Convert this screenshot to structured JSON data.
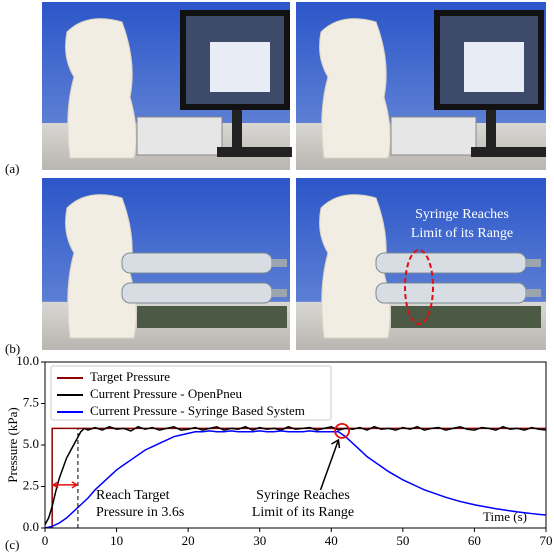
{
  "panel_labels": [
    "(a)",
    "(b)",
    "(c)"
  ],
  "photo_annotation": [
    "Syringe Reaches",
    "Limit of its Range"
  ],
  "chart_data": {
    "type": "line",
    "xlabel": "Time (s)",
    "ylabel": "Pressure (kPa)",
    "xlim": [
      0,
      70
    ],
    "ylim": [
      0,
      10
    ],
    "xticks": [
      0,
      10,
      20,
      30,
      40,
      50,
      60,
      70
    ],
    "yticks": [
      {
        "value": 0,
        "label": "0.0"
      },
      2.5,
      {
        "value": 5,
        "label": "5.0"
      },
      7.5,
      {
        "value": 10,
        "label": "10.0"
      }
    ],
    "legend": "upper left",
    "series": [
      {
        "name": "Target Pressure",
        "color": "#8b0000",
        "x": [
          0,
          1,
          1,
          70
        ],
        "values": [
          0,
          0,
          6,
          6
        ]
      },
      {
        "name": "Current Pressure - OpenPneu",
        "color": "#000000",
        "x": [
          0,
          0.5,
          1,
          1.5,
          2,
          2.5,
          3,
          3.5,
          4,
          4.5,
          5,
          5.5,
          6,
          7,
          8,
          9,
          10,
          11,
          12,
          13,
          14,
          15,
          16,
          17,
          18,
          19,
          20,
          21,
          22,
          23,
          24,
          25,
          26,
          27,
          28,
          29,
          30,
          31,
          32,
          33,
          34,
          35,
          36,
          37,
          38,
          39,
          40,
          41,
          42,
          43,
          44,
          45,
          46,
          47,
          48,
          49,
          50,
          51,
          52,
          53,
          54,
          55,
          56,
          57,
          58,
          59,
          60,
          61,
          62,
          63,
          64,
          65,
          66,
          67,
          68,
          69,
          70
        ],
        "values": [
          0.2,
          0.6,
          1.3,
          2.2,
          3.0,
          3.6,
          4.2,
          4.6,
          5.0,
          5.4,
          5.8,
          6.0,
          5.9,
          6.05,
          5.9,
          6.1,
          5.95,
          6.0,
          5.85,
          6.1,
          5.95,
          6.05,
          5.9,
          6.0,
          6.1,
          5.9,
          5.95,
          6.05,
          5.9,
          6.0,
          6.1,
          5.9,
          6.0,
          5.95,
          6.1,
          5.9,
          6.05,
          5.95,
          6.0,
          5.9,
          6.1,
          5.95,
          6.0,
          6.05,
          5.9,
          6.0,
          6.1,
          5.9,
          6.0,
          5.95,
          6.05,
          5.9,
          6.1,
          5.95,
          6.0,
          5.9,
          6.05,
          5.95,
          6.1,
          5.9,
          6.0,
          6.05,
          5.9,
          6.0,
          6.1,
          5.95,
          5.9,
          6.05,
          6.0,
          5.9,
          6.1,
          5.95,
          6.0,
          5.9,
          6.05,
          5.95,
          5.9
        ]
      },
      {
        "name": "Current Pressure - Syringe Based System",
        "color": "#0000ff",
        "x": [
          0,
          1,
          2,
          3,
          4,
          5,
          6,
          7,
          8,
          9,
          10,
          11,
          12,
          13,
          14,
          15,
          16,
          17,
          18,
          19,
          20,
          21,
          22,
          23,
          24,
          25,
          26,
          27,
          28,
          29,
          30,
          31,
          32,
          33,
          34,
          35,
          36,
          37,
          38,
          39,
          40,
          41,
          42,
          43,
          44,
          45,
          46,
          47,
          48,
          49,
          50,
          51,
          52,
          53,
          54,
          55,
          56,
          57,
          58,
          59,
          60,
          61,
          62,
          63,
          64,
          65,
          66,
          67,
          68,
          69,
          70
        ],
        "values": [
          0,
          0.1,
          0.3,
          0.6,
          1.0,
          1.4,
          1.8,
          2.3,
          2.7,
          3.1,
          3.5,
          3.8,
          4.1,
          4.4,
          4.7,
          4.9,
          5.1,
          5.3,
          5.5,
          5.6,
          5.7,
          5.8,
          5.8,
          5.85,
          5.8,
          5.8,
          5.85,
          5.8,
          5.8,
          5.8,
          5.85,
          5.8,
          5.8,
          5.85,
          5.8,
          5.8,
          5.8,
          5.85,
          5.8,
          5.8,
          5.8,
          5.8,
          5.5,
          5.1,
          4.7,
          4.3,
          4.0,
          3.7,
          3.4,
          3.15,
          2.9,
          2.7,
          2.5,
          2.3,
          2.15,
          2.0,
          1.85,
          1.72,
          1.6,
          1.5,
          1.4,
          1.32,
          1.24,
          1.16,
          1.1,
          1.03,
          0.97,
          0.92,
          0.87,
          0.82,
          0.78
        ]
      }
    ],
    "annotations": [
      {
        "text": [
          "Reach Target",
          "Pressure in 3.6s"
        ]
      },
      {
        "text": [
          "Syringe Reaches",
          "Limit of its Range"
        ]
      }
    ]
  }
}
